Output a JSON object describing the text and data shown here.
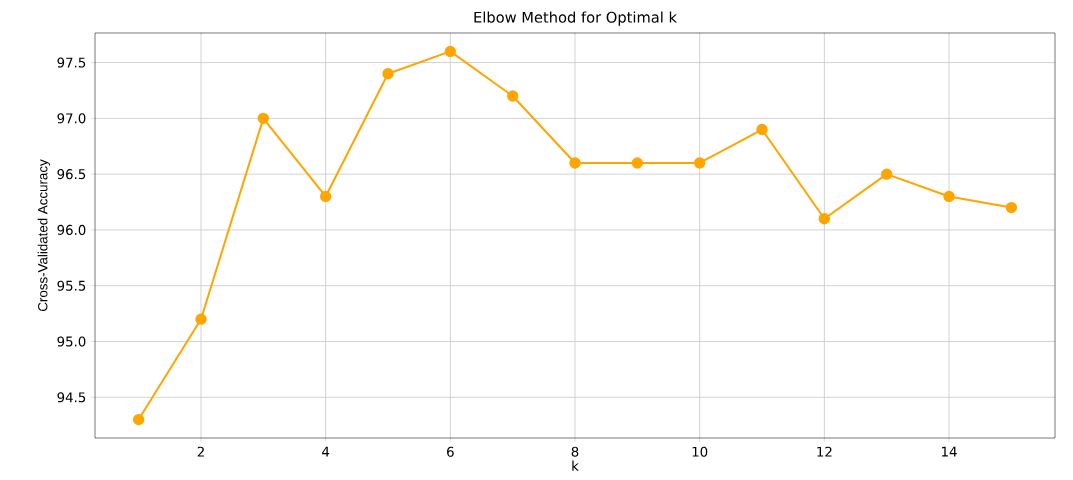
{
  "chart_data": {
    "type": "line",
    "title": "Elbow Method for Optimal k",
    "xlabel": "k",
    "ylabel": "Cross-Validated Accuracy",
    "x": [
      1,
      2,
      3,
      4,
      5,
      6,
      7,
      8,
      9,
      10,
      11,
      12,
      13,
      14,
      15
    ],
    "series": [
      {
        "color": "#ffa500",
        "values": [
          94.3,
          95.2,
          97.0,
          96.3,
          97.4,
          97.6,
          97.2,
          96.6,
          96.6,
          96.6,
          96.9,
          96.1,
          96.5,
          96.3,
          96.2
        ]
      }
    ],
    "xlim": [
      0.3,
      15.7
    ],
    "ylim": [
      94.135,
      97.765
    ],
    "xticks": [
      2,
      4,
      6,
      8,
      10,
      12,
      14
    ],
    "yticks": [
      {
        "value": 94.5,
        "label": "94.5"
      },
      {
        "value": 95,
        "label": "95.0"
      },
      {
        "value": 95.5,
        "label": "95.5"
      },
      {
        "value": 96,
        "label": "96.0"
      },
      {
        "value": 96.5,
        "label": "96.5"
      },
      {
        "value": 97,
        "label": "97.0"
      },
      {
        "value": 97.5,
        "label": "97.5"
      }
    ],
    "grid": true,
    "marker": "circle",
    "line_style": "solid"
  }
}
